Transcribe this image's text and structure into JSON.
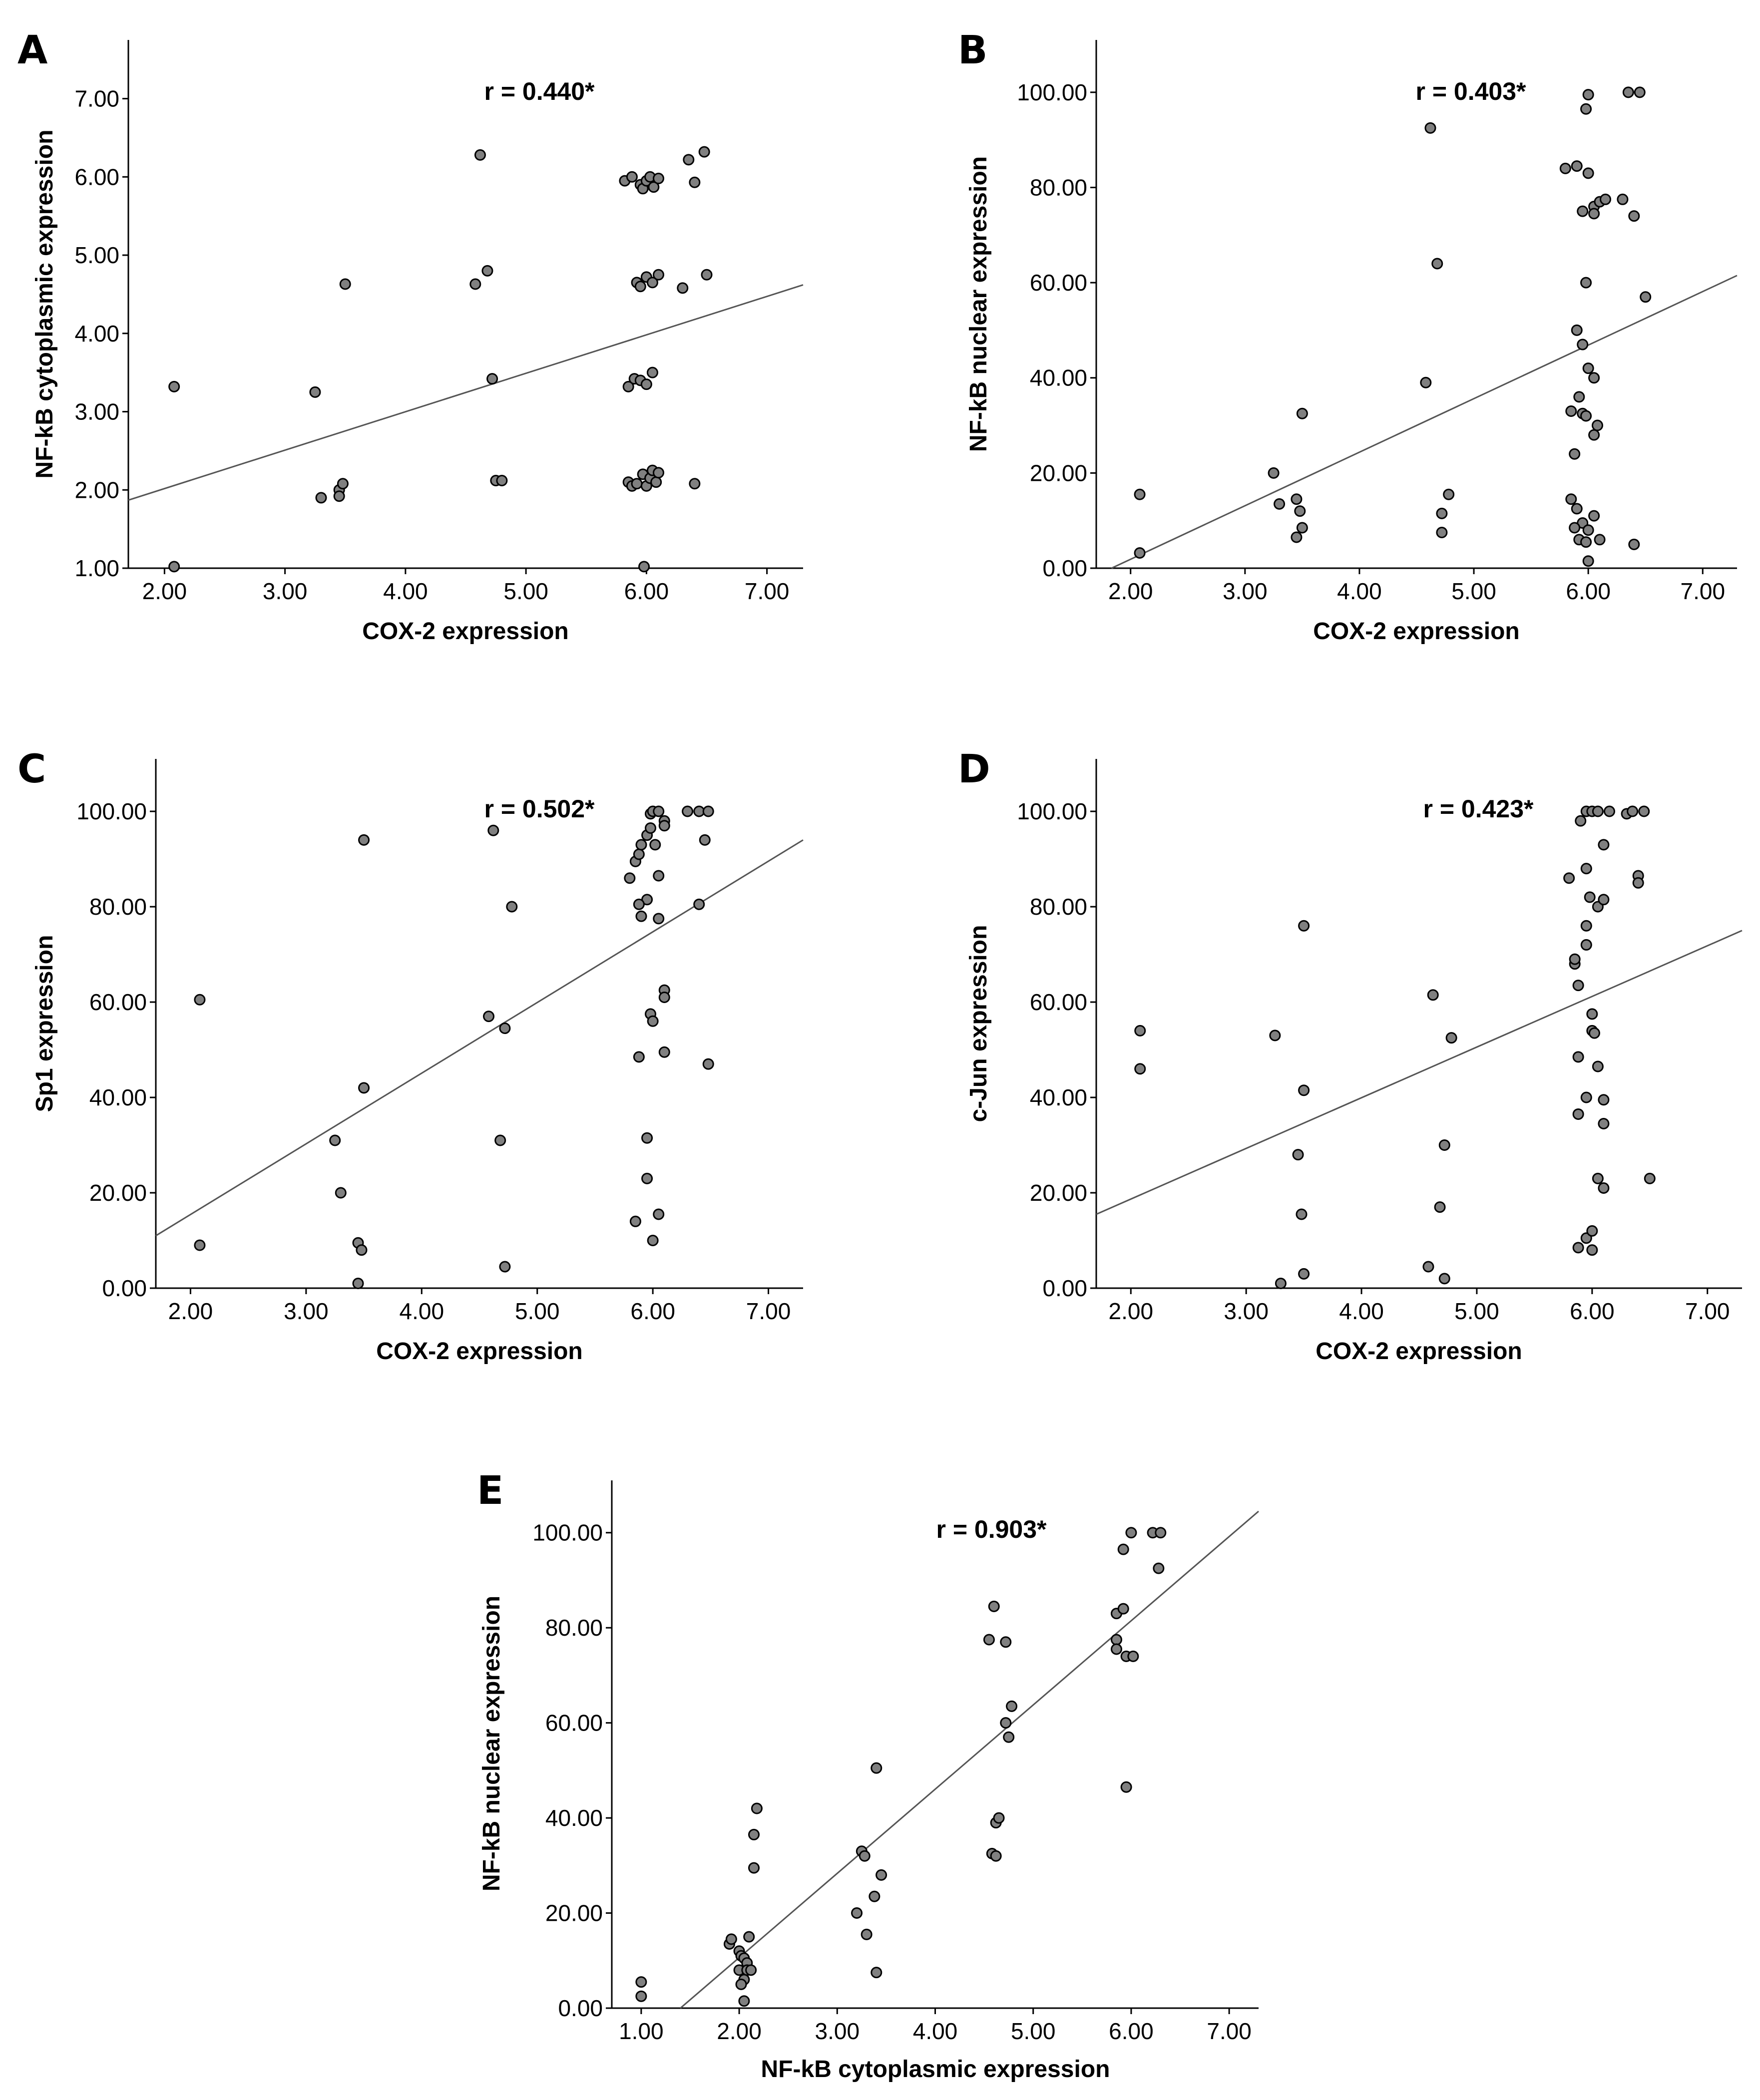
{
  "colors": {
    "point_fill": "#808080",
    "point_stroke": "#000000",
    "fit_line": "#555555",
    "axis": "#000000"
  },
  "chart_data": [
    {
      "type": "scatter",
      "panel": "A",
      "title": "",
      "xlabel": "COX-2 expression",
      "ylabel": "NF-kB cytoplasmic expression",
      "annotation": "r = 0.440*",
      "xlim": [
        1.7,
        7.3
      ],
      "ylim": [
        1.0,
        7.75
      ],
      "xticks": [
        "2.00",
        "3.00",
        "4.00",
        "5.00",
        "6.00",
        "7.00"
      ],
      "xtick_values": [
        2,
        3,
        4,
        5,
        6,
        7
      ],
      "yticks": [
        "1.00",
        "2.00",
        "3.00",
        "4.00",
        "5.00",
        "6.00",
        "7.00"
      ],
      "ytick_values": [
        1,
        2,
        3,
        4,
        5,
        6,
        7
      ],
      "fit_line": {
        "x": [
          1.7,
          7.3
        ],
        "y": [
          1.87,
          4.62
        ]
      },
      "points": [
        [
          2.08,
          3.32
        ],
        [
          2.08,
          1.02
        ],
        [
          3.25,
          3.25
        ],
        [
          3.3,
          1.9
        ],
        [
          3.45,
          2.0
        ],
        [
          3.48,
          2.08
        ],
        [
          3.45,
          1.92
        ],
        [
          3.5,
          4.63
        ],
        [
          4.58,
          4.63
        ],
        [
          4.62,
          6.28
        ],
        [
          4.68,
          4.8
        ],
        [
          4.72,
          3.42
        ],
        [
          4.75,
          2.12
        ],
        [
          4.8,
          2.12
        ],
        [
          5.82,
          5.95
        ],
        [
          5.88,
          6.0
        ],
        [
          5.95,
          5.9
        ],
        [
          5.97,
          5.85
        ],
        [
          6.0,
          5.95
        ],
        [
          6.03,
          6.0
        ],
        [
          6.06,
          5.87
        ],
        [
          6.1,
          5.98
        ],
        [
          5.92,
          4.65
        ],
        [
          5.95,
          4.6
        ],
        [
          6.0,
          4.72
        ],
        [
          6.05,
          4.65
        ],
        [
          6.1,
          4.75
        ],
        [
          6.3,
          4.58
        ],
        [
          6.5,
          4.75
        ],
        [
          5.85,
          3.32
        ],
        [
          5.9,
          3.42
        ],
        [
          5.95,
          3.4
        ],
        [
          6.0,
          3.35
        ],
        [
          6.05,
          3.5
        ],
        [
          5.85,
          2.1
        ],
        [
          5.88,
          2.05
        ],
        [
          5.92,
          2.08
        ],
        [
          5.97,
          2.2
        ],
        [
          6.0,
          2.05
        ],
        [
          6.03,
          2.15
        ],
        [
          6.05,
          2.25
        ],
        [
          6.08,
          2.1
        ],
        [
          6.1,
          2.22
        ],
        [
          5.98,
          1.02
        ],
        [
          6.35,
          6.22
        ],
        [
          6.4,
          5.93
        ],
        [
          6.48,
          6.32
        ],
        [
          6.4,
          2.08
        ]
      ]
    },
    {
      "type": "scatter",
      "panel": "B",
      "title": "",
      "xlabel": "COX-2 expression",
      "ylabel": "NF-kB nuclear expression",
      "annotation": "r = 0.403*",
      "xlim": [
        1.7,
        7.3
      ],
      "ylim": [
        0,
        111
      ],
      "xticks": [
        "2.00",
        "3.00",
        "4.00",
        "5.00",
        "6.00",
        "7.00"
      ],
      "xtick_values": [
        2,
        3,
        4,
        5,
        6,
        7
      ],
      "yticks": [
        "0.00",
        "20.00",
        "40.00",
        "60.00",
        "80.00",
        "100.00"
      ],
      "ytick_values": [
        0,
        20,
        40,
        60,
        80,
        100
      ],
      "fit_line": {
        "x": [
          1.7,
          7.3
        ],
        "y": [
          -1.5,
          61.5
        ]
      },
      "points": [
        [
          2.08,
          15.5
        ],
        [
          2.08,
          3.2
        ],
        [
          3.25,
          20.0
        ],
        [
          3.3,
          13.5
        ],
        [
          3.45,
          14.5
        ],
        [
          3.48,
          12.0
        ],
        [
          3.5,
          8.5
        ],
        [
          3.45,
          6.5
        ],
        [
          3.5,
          32.5
        ],
        [
          4.58,
          39.0
        ],
        [
          4.62,
          92.5
        ],
        [
          4.68,
          64.0
        ],
        [
          4.72,
          11.5
        ],
        [
          4.72,
          7.5
        ],
        [
          4.78,
          15.5
        ],
        [
          5.8,
          84.0
        ],
        [
          5.9,
          84.5
        ],
        [
          5.95,
          75.0
        ],
        [
          5.98,
          96.5
        ],
        [
          6.0,
          83.0
        ],
        [
          6.05,
          76.0
        ],
        [
          6.1,
          77.0
        ],
        [
          6.15,
          77.5
        ],
        [
          6.05,
          74.5
        ],
        [
          6.3,
          77.5
        ],
        [
          6.4,
          74.0
        ],
        [
          6.35,
          100.0
        ],
        [
          6.45,
          100.0
        ],
        [
          6.0,
          99.5
        ],
        [
          5.98,
          60.0
        ],
        [
          6.5,
          57.0
        ],
        [
          5.9,
          50.0
        ],
        [
          5.95,
          47.0
        ],
        [
          6.0,
          42.0
        ],
        [
          6.05,
          40.0
        ],
        [
          5.85,
          33.0
        ],
        [
          5.92,
          36.0
        ],
        [
          5.95,
          32.5
        ],
        [
          5.98,
          32.0
        ],
        [
          6.08,
          30.0
        ],
        [
          6.05,
          28.0
        ],
        [
          5.88,
          24.0
        ],
        [
          5.85,
          14.5
        ],
        [
          5.9,
          12.5
        ],
        [
          5.95,
          9.5
        ],
        [
          6.0,
          8.0
        ],
        [
          6.05,
          11.0
        ],
        [
          6.1,
          6.0
        ],
        [
          5.88,
          8.5
        ],
        [
          5.92,
          6.0
        ],
        [
          5.98,
          5.5
        ],
        [
          6.0,
          1.5
        ],
        [
          6.4,
          5.0
        ]
      ]
    },
    {
      "type": "scatter",
      "panel": "C",
      "title": "",
      "xlabel": "COX-2 expression",
      "ylabel": "Sp1 expression",
      "annotation": "r = 0.502*",
      "xlim": [
        1.7,
        7.3
      ],
      "ylim": [
        0,
        111
      ],
      "xticks": [
        "2.00",
        "3.00",
        "4.00",
        "5.00",
        "6.00",
        "7.00"
      ],
      "xtick_values": [
        2,
        3,
        4,
        5,
        6,
        7
      ],
      "yticks": [
        "0.00",
        "20.00",
        "40.00",
        "60.00",
        "80.00",
        "100.00"
      ],
      "ytick_values": [
        0,
        20,
        40,
        60,
        80,
        100
      ],
      "fit_line": {
        "x": [
          1.7,
          7.3
        ],
        "y": [
          11.0,
          94.0
        ]
      },
      "points": [
        [
          2.08,
          60.5
        ],
        [
          2.08,
          9.0
        ],
        [
          3.25,
          31.0
        ],
        [
          3.3,
          20.0
        ],
        [
          3.45,
          9.5
        ],
        [
          3.48,
          8.0
        ],
        [
          3.5,
          42.0
        ],
        [
          3.5,
          94.0
        ],
        [
          3.45,
          1.0
        ],
        [
          4.58,
          57.0
        ],
        [
          4.62,
          96.0
        ],
        [
          4.68,
          31.0
        ],
        [
          4.72,
          54.5
        ],
        [
          4.72,
          4.5
        ],
        [
          4.78,
          80.0
        ],
        [
          5.8,
          86.0
        ],
        [
          5.85,
          89.5
        ],
        [
          5.88,
          91.0
        ],
        [
          5.9,
          93.0
        ],
        [
          5.95,
          95.0
        ],
        [
          5.98,
          99.5
        ],
        [
          6.0,
          100.0
        ],
        [
          6.05,
          100.0
        ],
        [
          6.1,
          98.0
        ],
        [
          5.98,
          96.5
        ],
        [
          6.02,
          93.0
        ],
        [
          6.1,
          97.0
        ],
        [
          6.3,
          100.0
        ],
        [
          6.4,
          100.0
        ],
        [
          6.48,
          100.0
        ],
        [
          6.45,
          94.0
        ],
        [
          6.4,
          80.5
        ],
        [
          6.05,
          86.5
        ],
        [
          5.95,
          81.5
        ],
        [
          5.88,
          80.5
        ],
        [
          6.05,
          77.5
        ],
        [
          5.9,
          78.0
        ],
        [
          6.1,
          62.5
        ],
        [
          6.1,
          61.0
        ],
        [
          5.98,
          57.5
        ],
        [
          6.0,
          56.0
        ],
        [
          5.88,
          48.5
        ],
        [
          6.1,
          49.5
        ],
        [
          6.48,
          47.0
        ],
        [
          5.95,
          31.5
        ],
        [
          5.95,
          23.0
        ],
        [
          5.85,
          14.0
        ],
        [
          6.05,
          15.5
        ],
        [
          6.0,
          10.0
        ]
      ]
    },
    {
      "type": "scatter",
      "panel": "D",
      "title": "",
      "xlabel": "COX-2 expression",
      "ylabel": "c-Jun expression",
      "annotation": "r = 0.423*",
      "xlim": [
        1.7,
        7.3
      ],
      "ylim": [
        0,
        111
      ],
      "xticks": [
        "2.00",
        "3.00",
        "4.00",
        "5.00",
        "6.00",
        "7.00"
      ],
      "xtick_values": [
        2,
        3,
        4,
        5,
        6,
        7
      ],
      "yticks": [
        "0.00",
        "20.00",
        "40.00",
        "60.00",
        "80.00",
        "100.00"
      ],
      "ytick_values": [
        0,
        20,
        40,
        60,
        80,
        100
      ],
      "fit_line": {
        "x": [
          1.7,
          7.3
        ],
        "y": [
          15.5,
          75.0
        ]
      },
      "points": [
        [
          2.08,
          54.0
        ],
        [
          2.08,
          46.0
        ],
        [
          3.25,
          53.0
        ],
        [
          3.3,
          1.0
        ],
        [
          3.45,
          28.0
        ],
        [
          3.48,
          15.5
        ],
        [
          3.5,
          41.5
        ],
        [
          3.5,
          76.0
        ],
        [
          3.5,
          3.0
        ],
        [
          4.58,
          4.5
        ],
        [
          4.62,
          61.5
        ],
        [
          4.68,
          17.0
        ],
        [
          4.72,
          30.0
        ],
        [
          4.78,
          52.5
        ],
        [
          4.72,
          2.0
        ],
        [
          5.8,
          86.0
        ],
        [
          5.85,
          68.0
        ],
        [
          5.85,
          69.0
        ],
        [
          5.9,
          98.0
        ],
        [
          5.95,
          100.0
        ],
        [
          6.0,
          100.0
        ],
        [
          6.05,
          100.0
        ],
        [
          6.1,
          93.0
        ],
        [
          6.15,
          100.0
        ],
        [
          6.3,
          99.5
        ],
        [
          6.35,
          100.0
        ],
        [
          6.45,
          100.0
        ],
        [
          6.4,
          86.5
        ],
        [
          6.4,
          85.0
        ],
        [
          6.5,
          23.0
        ],
        [
          5.95,
          88.0
        ],
        [
          5.98,
          82.0
        ],
        [
          6.05,
          80.0
        ],
        [
          6.1,
          81.5
        ],
        [
          5.95,
          76.0
        ],
        [
          5.95,
          72.0
        ],
        [
          5.88,
          63.5
        ],
        [
          6.0,
          57.5
        ],
        [
          6.0,
          54.0
        ],
        [
          6.02,
          53.5
        ],
        [
          5.88,
          48.5
        ],
        [
          6.05,
          46.5
        ],
        [
          5.95,
          40.0
        ],
        [
          6.1,
          39.5
        ],
        [
          5.88,
          36.5
        ],
        [
          6.1,
          34.5
        ],
        [
          6.05,
          23.0
        ],
        [
          6.1,
          21.0
        ],
        [
          5.95,
          10.5
        ],
        [
          6.0,
          12.0
        ],
        [
          5.88,
          8.5
        ],
        [
          6.0,
          8.0
        ]
      ]
    },
    {
      "type": "scatter",
      "panel": "E",
      "title": "",
      "xlabel": "NF-kB cytoplasmic expression",
      "ylabel": "NF-kB nuclear expression",
      "annotation": "r = 0.903*",
      "xlim": [
        0.7,
        7.3
      ],
      "ylim": [
        0,
        111
      ],
      "xticks": [
        "1.00",
        "2.00",
        "3.00",
        "4.00",
        "5.00",
        "6.00",
        "7.00"
      ],
      "xtick_values": [
        1,
        2,
        3,
        4,
        5,
        6,
        7
      ],
      "yticks": [
        "0.00",
        "20.00",
        "40.00",
        "60.00",
        "80.00",
        "100.00"
      ],
      "ytick_values": [
        0,
        20,
        40,
        60,
        80,
        100
      ],
      "fit_line": {
        "x": [
          1.4,
          7.3
        ],
        "y": [
          0,
          104.5
        ]
      },
      "points": [
        [
          1.0,
          5.5
        ],
        [
          1.0,
          2.5
        ],
        [
          1.9,
          13.5
        ],
        [
          1.92,
          14.5
        ],
        [
          2.0,
          12.0
        ],
        [
          2.02,
          11.0
        ],
        [
          2.05,
          10.5
        ],
        [
          2.08,
          9.5
        ],
        [
          2.1,
          15.0
        ],
        [
          2.0,
          8.0
        ],
        [
          2.05,
          6.0
        ],
        [
          2.02,
          5.0
        ],
        [
          2.08,
          8.0
        ],
        [
          2.12,
          8.0
        ],
        [
          2.05,
          1.5
        ],
        [
          2.15,
          36.5
        ],
        [
          2.18,
          42.0
        ],
        [
          2.15,
          29.5
        ],
        [
          3.2,
          20.0
        ],
        [
          3.25,
          33.0
        ],
        [
          3.28,
          32.0
        ],
        [
          3.3,
          15.5
        ],
        [
          3.38,
          23.5
        ],
        [
          3.4,
          7.5
        ],
        [
          3.45,
          28.0
        ],
        [
          3.4,
          50.5
        ],
        [
          4.55,
          77.5
        ],
        [
          4.6,
          84.5
        ],
        [
          4.72,
          77.0
        ],
        [
          4.78,
          63.5
        ],
        [
          4.72,
          60.0
        ],
        [
          4.75,
          57.0
        ],
        [
          4.58,
          32.5
        ],
        [
          4.62,
          32.0
        ],
        [
          4.62,
          39.0
        ],
        [
          4.65,
          40.0
        ],
        [
          5.85,
          83.0
        ],
        [
          5.85,
          77.5
        ],
        [
          5.85,
          75.5
        ],
        [
          5.92,
          84.0
        ],
        [
          5.95,
          74.0
        ],
        [
          6.02,
          74.0
        ],
        [
          5.92,
          96.5
        ],
        [
          6.0,
          100.0
        ],
        [
          6.22,
          100.0
        ],
        [
          6.3,
          100.0
        ],
        [
          6.28,
          92.5
        ],
        [
          5.95,
          46.5
        ]
      ]
    }
  ]
}
